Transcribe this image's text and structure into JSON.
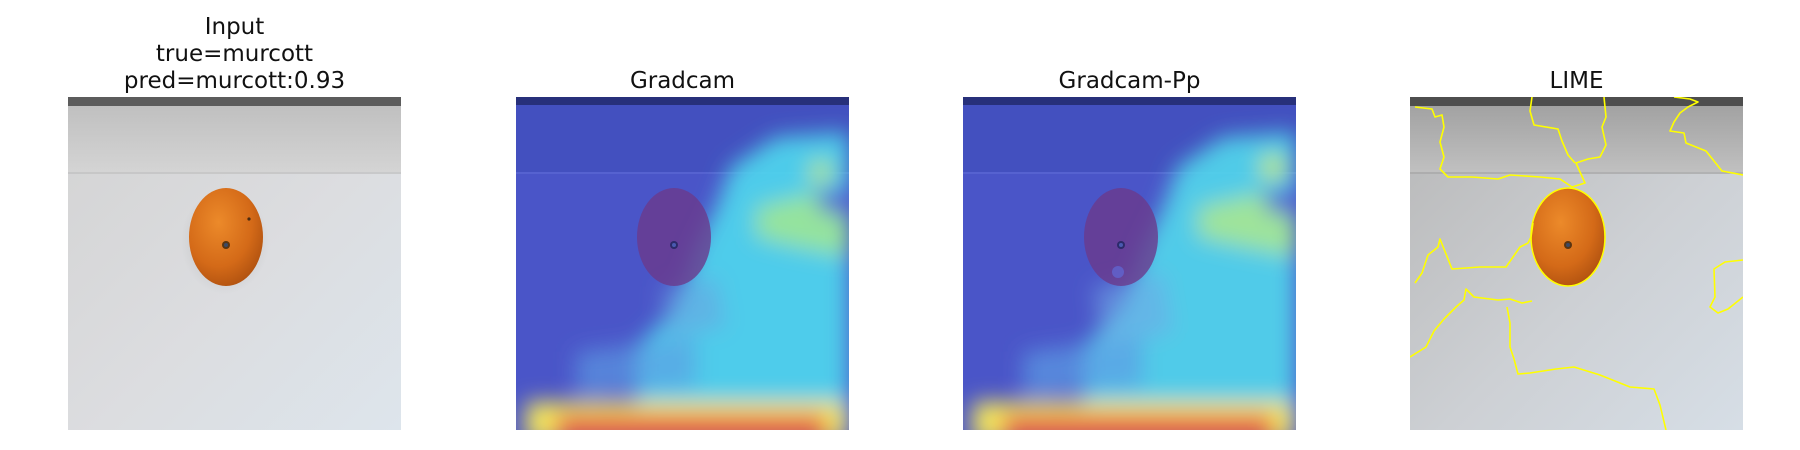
{
  "figure": {
    "panels": [
      {
        "id": "input",
        "title_lines": [
          "Input",
          "true=murcott",
          "pred=murcott:0.93"
        ],
        "image": {
          "subject": "orange fruit on white table",
          "overlay": "none"
        }
      },
      {
        "id": "gradcam",
        "title_lines": [
          "Gradcam"
        ],
        "image": {
          "subject": "orange fruit on white table",
          "overlay": "jet-heatmap"
        }
      },
      {
        "id": "gradcam-pp",
        "title_lines": [
          "Gradcam-Pp"
        ],
        "image": {
          "subject": "orange fruit on white table",
          "overlay": "jet-heatmap"
        }
      },
      {
        "id": "lime",
        "title_lines": [
          "LIME"
        ],
        "image": {
          "subject": "orange fruit on white table",
          "overlay": "yellow-superpixel-boundaries"
        }
      }
    ],
    "colors": {
      "background": "#ffffff",
      "lime_boundary": "#ffff00",
      "fruit": "#d86e1c"
    }
  }
}
